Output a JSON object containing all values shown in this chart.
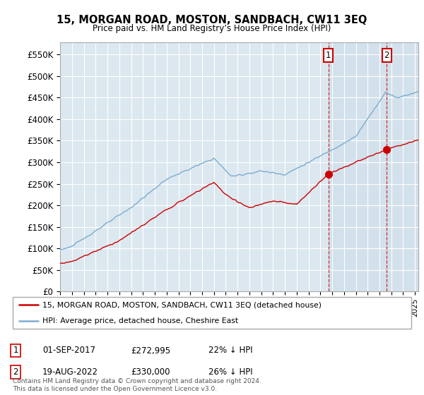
{
  "title": "15, MORGAN ROAD, MOSTON, SANDBACH, CW11 3EQ",
  "subtitle": "Price paid vs. HM Land Registry’s House Price Index (HPI)",
  "legend_line1": "15, MORGAN ROAD, MOSTON, SANDBACH, CW11 3EQ (detached house)",
  "legend_line2": "HPI: Average price, detached house, Cheshire East",
  "sale1_date": "01-SEP-2017",
  "sale1_price": "£272,995",
  "sale1_note": "22% ↓ HPI",
  "sale2_date": "19-AUG-2022",
  "sale2_price": "£330,000",
  "sale2_note": "26% ↓ HPI",
  "footer": "Contains HM Land Registry data © Crown copyright and database right 2024.\nThis data is licensed under the Open Government Licence v3.0.",
  "sale_color": "#cc0000",
  "hpi_color": "#7aadcf",
  "ylim": [
    0,
    577500
  ],
  "xlim_start": 1995.0,
  "xlim_end": 2025.3,
  "sale1_x": 2017.67,
  "sale2_x": 2022.62,
  "sale1_y": 272995,
  "sale2_y": 330000,
  "background_color": "#dce8f0",
  "shade_color": "#d0e4f0"
}
